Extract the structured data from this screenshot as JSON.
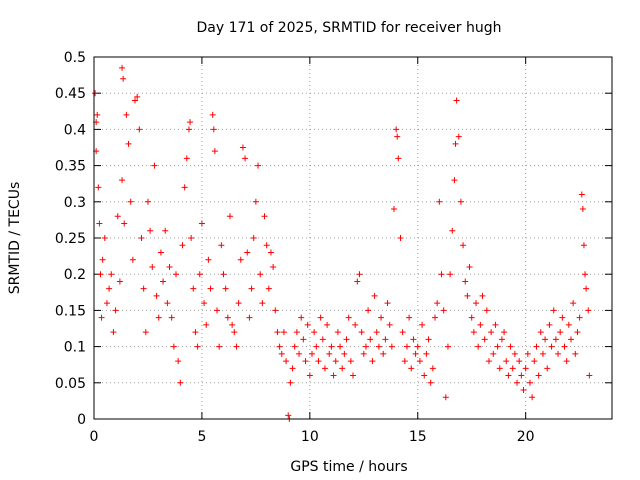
{
  "chart_data": {
    "type": "scatter",
    "title": "Day 171 of 2025, SRMTID for receiver hugh",
    "xlabel": "GPS time / hours",
    "ylabel": "SRMTID / TECUs",
    "xlim": [
      0,
      24
    ],
    "ylim": [
      0,
      0.5
    ],
    "x_ticks": [
      0,
      5,
      10,
      15,
      20
    ],
    "y_ticks": [
      0,
      0.05,
      0.1,
      0.15,
      0.2,
      0.25,
      0.3,
      0.35,
      0.4,
      0.45,
      0.5
    ],
    "x_tick_labels": [
      "0",
      "5",
      "10",
      "15",
      "20"
    ],
    "y_tick_labels": [
      "0",
      "0.05",
      "0.1",
      "0.15",
      "0.2",
      "0.25",
      "0.3",
      "0.35",
      "0.4",
      "0.45",
      "0.5"
    ],
    "grid": true,
    "marker": "plus",
    "color": "#ff0000",
    "series": [
      {
        "name": "SRMTID",
        "points": [
          [
            0.05,
            0.45
          ],
          [
            0.1,
            0.41
          ],
          [
            0.1,
            0.37
          ],
          [
            0.15,
            0.42
          ],
          [
            0.2,
            0.32
          ],
          [
            0.25,
            0.27
          ],
          [
            0.3,
            0.2
          ],
          [
            0.35,
            0.14
          ],
          [
            0.4,
            0.22
          ],
          [
            0.5,
            0.25
          ],
          [
            0.6,
            0.16
          ],
          [
            0.7,
            0.18
          ],
          [
            0.8,
            0.2
          ],
          [
            0.9,
            0.12
          ],
          [
            1.0,
            0.15
          ],
          [
            1.1,
            0.28
          ],
          [
            1.2,
            0.19
          ],
          [
            1.3,
            0.33
          ],
          [
            1.4,
            0.27
          ],
          [
            1.3,
            0.485
          ],
          [
            1.35,
            0.47
          ],
          [
            1.5,
            0.42
          ],
          [
            1.6,
            0.38
          ],
          [
            1.7,
            0.3
          ],
          [
            1.8,
            0.22
          ],
          [
            1.9,
            0.44
          ],
          [
            2.0,
            0.445
          ],
          [
            2.1,
            0.4
          ],
          [
            2.2,
            0.25
          ],
          [
            2.3,
            0.18
          ],
          [
            2.4,
            0.12
          ],
          [
            2.5,
            0.3
          ],
          [
            2.6,
            0.26
          ],
          [
            2.7,
            0.21
          ],
          [
            2.8,
            0.35
          ],
          [
            2.9,
            0.17
          ],
          [
            3.0,
            0.14
          ],
          [
            3.1,
            0.23
          ],
          [
            3.2,
            0.19
          ],
          [
            3.3,
            0.26
          ],
          [
            3.4,
            0.16
          ],
          [
            3.5,
            0.21
          ],
          [
            3.6,
            0.14
          ],
          [
            3.7,
            0.1
          ],
          [
            3.8,
            0.2
          ],
          [
            3.9,
            0.08
          ],
          [
            4.0,
            0.05
          ],
          [
            4.1,
            0.24
          ],
          [
            4.2,
            0.32
          ],
          [
            4.3,
            0.36
          ],
          [
            4.4,
            0.4
          ],
          [
            4.45,
            0.41
          ],
          [
            4.5,
            0.25
          ],
          [
            4.6,
            0.18
          ],
          [
            4.7,
            0.12
          ],
          [
            4.8,
            0.1
          ],
          [
            4.9,
            0.2
          ],
          [
            5.0,
            0.27
          ],
          [
            5.1,
            0.16
          ],
          [
            5.2,
            0.13
          ],
          [
            5.3,
            0.22
          ],
          [
            5.4,
            0.18
          ],
          [
            5.5,
            0.42
          ],
          [
            5.55,
            0.4
          ],
          [
            5.6,
            0.37
          ],
          [
            5.7,
            0.15
          ],
          [
            5.8,
            0.1
          ],
          [
            5.9,
            0.24
          ],
          [
            6.0,
            0.2
          ],
          [
            6.1,
            0.18
          ],
          [
            6.2,
            0.14
          ],
          [
            6.3,
            0.28
          ],
          [
            6.4,
            0.13
          ],
          [
            6.5,
            0.12
          ],
          [
            6.6,
            0.1
          ],
          [
            6.7,
            0.16
          ],
          [
            6.8,
            0.22
          ],
          [
            6.9,
            0.375
          ],
          [
            7.0,
            0.36
          ],
          [
            7.1,
            0.23
          ],
          [
            7.2,
            0.14
          ],
          [
            7.3,
            0.18
          ],
          [
            7.4,
            0.25
          ],
          [
            7.5,
            0.3
          ],
          [
            7.6,
            0.35
          ],
          [
            7.7,
            0.2
          ],
          [
            7.8,
            0.16
          ],
          [
            7.9,
            0.28
          ],
          [
            8.0,
            0.24
          ],
          [
            8.1,
            0.18
          ],
          [
            8.2,
            0.23
          ],
          [
            8.3,
            0.21
          ],
          [
            8.4,
            0.15
          ],
          [
            8.5,
            0.12
          ],
          [
            8.6,
            0.1
          ],
          [
            8.7,
            0.09
          ],
          [
            8.8,
            0.12
          ],
          [
            8.9,
            0.08
          ],
          [
            9.0,
            0.005
          ],
          [
            9.05,
            0.0
          ],
          [
            9.1,
            0.05
          ],
          [
            9.2,
            0.07
          ],
          [
            9.3,
            0.1
          ],
          [
            9.4,
            0.12
          ],
          [
            9.5,
            0.09
          ],
          [
            9.6,
            0.14
          ],
          [
            9.7,
            0.11
          ],
          [
            9.8,
            0.08
          ],
          [
            9.9,
            0.13
          ],
          [
            10.0,
            0.06
          ],
          [
            10.1,
            0.09
          ],
          [
            10.2,
            0.12
          ],
          [
            10.3,
            0.1
          ],
          [
            10.4,
            0.08
          ],
          [
            10.5,
            0.14
          ],
          [
            10.6,
            0.11
          ],
          [
            10.7,
            0.07
          ],
          [
            10.8,
            0.13
          ],
          [
            10.9,
            0.09
          ],
          [
            11.0,
            0.1
          ],
          [
            11.1,
            0.06
          ],
          [
            11.2,
            0.08
          ],
          [
            11.3,
            0.12
          ],
          [
            11.4,
            0.1
          ],
          [
            11.5,
            0.07
          ],
          [
            11.6,
            0.09
          ],
          [
            11.7,
            0.11
          ],
          [
            11.8,
            0.14
          ],
          [
            11.9,
            0.08
          ],
          [
            12.0,
            0.06
          ],
          [
            12.1,
            0.13
          ],
          [
            12.2,
            0.19
          ],
          [
            12.3,
            0.2
          ],
          [
            12.4,
            0.12
          ],
          [
            12.5,
            0.09
          ],
          [
            12.6,
            0.1
          ],
          [
            12.7,
            0.15
          ],
          [
            12.8,
            0.11
          ],
          [
            12.9,
            0.08
          ],
          [
            13.0,
            0.17
          ],
          [
            13.1,
            0.12
          ],
          [
            13.2,
            0.1
          ],
          [
            13.3,
            0.14
          ],
          [
            13.4,
            0.09
          ],
          [
            13.5,
            0.11
          ],
          [
            13.6,
            0.16
          ],
          [
            13.7,
            0.13
          ],
          [
            13.8,
            0.1
          ],
          [
            13.9,
            0.29
          ],
          [
            14.0,
            0.4
          ],
          [
            14.05,
            0.39
          ],
          [
            14.1,
            0.36
          ],
          [
            14.2,
            0.25
          ],
          [
            14.3,
            0.12
          ],
          [
            14.4,
            0.08
          ],
          [
            14.5,
            0.1
          ],
          [
            14.6,
            0.14
          ],
          [
            14.7,
            0.07
          ],
          [
            14.8,
            0.11
          ],
          [
            14.9,
            0.09
          ],
          [
            15.0,
            0.1
          ],
          [
            15.1,
            0.08
          ],
          [
            15.2,
            0.13
          ],
          [
            15.3,
            0.06
          ],
          [
            15.4,
            0.09
          ],
          [
            15.5,
            0.11
          ],
          [
            15.6,
            0.05
          ],
          [
            15.7,
            0.07
          ],
          [
            15.8,
            0.14
          ],
          [
            15.9,
            0.16
          ],
          [
            16.0,
            0.3
          ],
          [
            16.1,
            0.2
          ],
          [
            16.2,
            0.15
          ],
          [
            16.3,
            0.03
          ],
          [
            16.4,
            0.1
          ],
          [
            16.5,
            0.2
          ],
          [
            16.6,
            0.26
          ],
          [
            16.7,
            0.33
          ],
          [
            16.75,
            0.38
          ],
          [
            16.8,
            0.44
          ],
          [
            16.9,
            0.39
          ],
          [
            17.0,
            0.3
          ],
          [
            17.1,
            0.24
          ],
          [
            17.2,
            0.19
          ],
          [
            17.3,
            0.17
          ],
          [
            17.4,
            0.21
          ],
          [
            17.5,
            0.14
          ],
          [
            17.6,
            0.12
          ],
          [
            17.7,
            0.16
          ],
          [
            17.8,
            0.1
          ],
          [
            17.9,
            0.13
          ],
          [
            18.0,
            0.17
          ],
          [
            18.1,
            0.11
          ],
          [
            18.2,
            0.15
          ],
          [
            18.3,
            0.08
          ],
          [
            18.4,
            0.12
          ],
          [
            18.5,
            0.09
          ],
          [
            18.6,
            0.13
          ],
          [
            18.7,
            0.1
          ],
          [
            18.8,
            0.07
          ],
          [
            18.9,
            0.11
          ],
          [
            19.0,
            0.12
          ],
          [
            19.1,
            0.08
          ],
          [
            19.2,
            0.06
          ],
          [
            19.3,
            0.1
          ],
          [
            19.4,
            0.07
          ],
          [
            19.5,
            0.09
          ],
          [
            19.6,
            0.05
          ],
          [
            19.7,
            0.08
          ],
          [
            19.8,
            0.06
          ],
          [
            19.9,
            0.04
          ],
          [
            20.0,
            0.07
          ],
          [
            20.1,
            0.09
          ],
          [
            20.2,
            0.05
          ],
          [
            20.3,
            0.03
          ],
          [
            20.4,
            0.08
          ],
          [
            20.5,
            0.1
          ],
          [
            20.6,
            0.06
          ],
          [
            20.7,
            0.12
          ],
          [
            20.8,
            0.09
          ],
          [
            20.9,
            0.11
          ],
          [
            21.0,
            0.07
          ],
          [
            21.1,
            0.13
          ],
          [
            21.2,
            0.1
          ],
          [
            21.3,
            0.15
          ],
          [
            21.4,
            0.11
          ],
          [
            21.5,
            0.09
          ],
          [
            21.6,
            0.12
          ],
          [
            21.7,
            0.14
          ],
          [
            21.8,
            0.1
          ],
          [
            21.9,
            0.08
          ],
          [
            22.0,
            0.13
          ],
          [
            22.1,
            0.11
          ],
          [
            22.2,
            0.16
          ],
          [
            22.3,
            0.09
          ],
          [
            22.4,
            0.12
          ],
          [
            22.5,
            0.14
          ],
          [
            22.6,
            0.31
          ],
          [
            22.65,
            0.29
          ],
          [
            22.7,
            0.24
          ],
          [
            22.75,
            0.2
          ],
          [
            22.8,
            0.18
          ],
          [
            22.9,
            0.15
          ],
          [
            22.95,
            0.06
          ]
        ]
      }
    ]
  }
}
